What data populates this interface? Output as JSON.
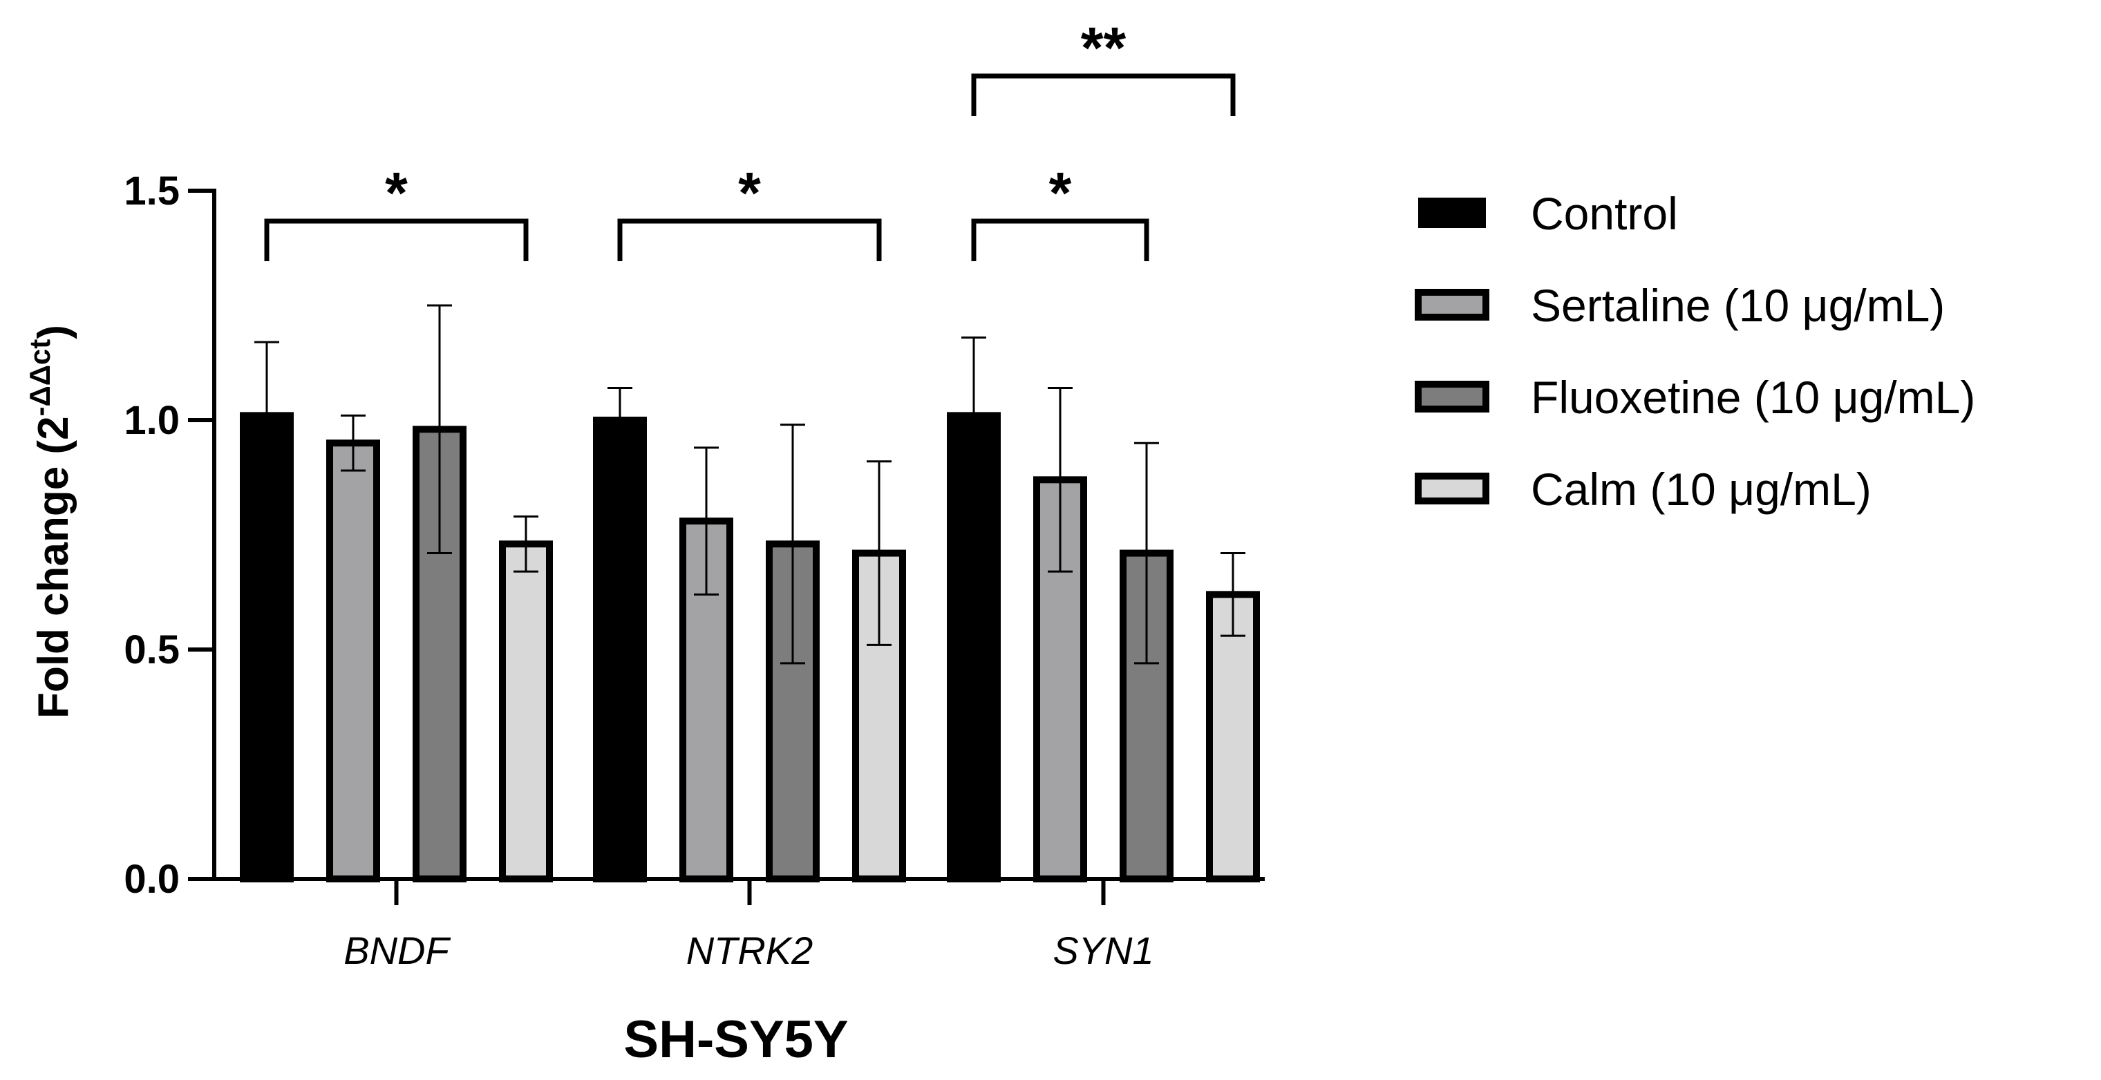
{
  "chart_data": {
    "type": "bar",
    "title": "",
    "xlabel": "SH-SY5Y",
    "ylabel": "Fold change (2",
    "ylabel_superscript": "-ΔΔct",
    "ylabel_close": ")",
    "ylim": [
      0,
      1.5
    ],
    "yticks": [
      0.0,
      0.5,
      1.0,
      1.5
    ],
    "ytick_labels": [
      "0.0",
      "0.5",
      "1.0",
      "1.5"
    ],
    "categories": [
      "BNDF",
      "NTRK2",
      "SYN1"
    ],
    "legend_position": "right",
    "series": [
      {
        "name": "Control",
        "color": "#000000",
        "values": [
          1.01,
          1.0,
          1.01
        ],
        "errors": [
          0.16,
          0.07,
          0.17
        ]
      },
      {
        "name": "Sertaline (10 μg/mL)",
        "color": "#a3a3a6",
        "values": [
          0.95,
          0.78,
          0.87
        ],
        "errors": [
          0.06,
          0.16,
          0.2
        ]
      },
      {
        "name": "Fluoxetine (10 μg/mL)",
        "color": "#7d7d7d",
        "values": [
          0.98,
          0.73,
          0.71
        ],
        "errors": [
          0.27,
          0.26,
          0.24
        ]
      },
      {
        "name": "Calm (10 μg/mL)",
        "color": "#d8d8d8",
        "values": [
          0.73,
          0.71,
          0.62
        ],
        "errors": [
          0.06,
          0.2,
          0.09
        ]
      }
    ],
    "significance": [
      {
        "category": "BNDF",
        "from_series": 0,
        "to_series": 3,
        "label": "*"
      },
      {
        "category": "NTRK2",
        "from_series": 0,
        "to_series": 3,
        "label": "*"
      },
      {
        "category": "SYN1",
        "from_series": 0,
        "to_series": 2,
        "label": "*"
      },
      {
        "category": "SYN1",
        "from_series": 0,
        "to_series": 3,
        "label": "**"
      }
    ]
  }
}
